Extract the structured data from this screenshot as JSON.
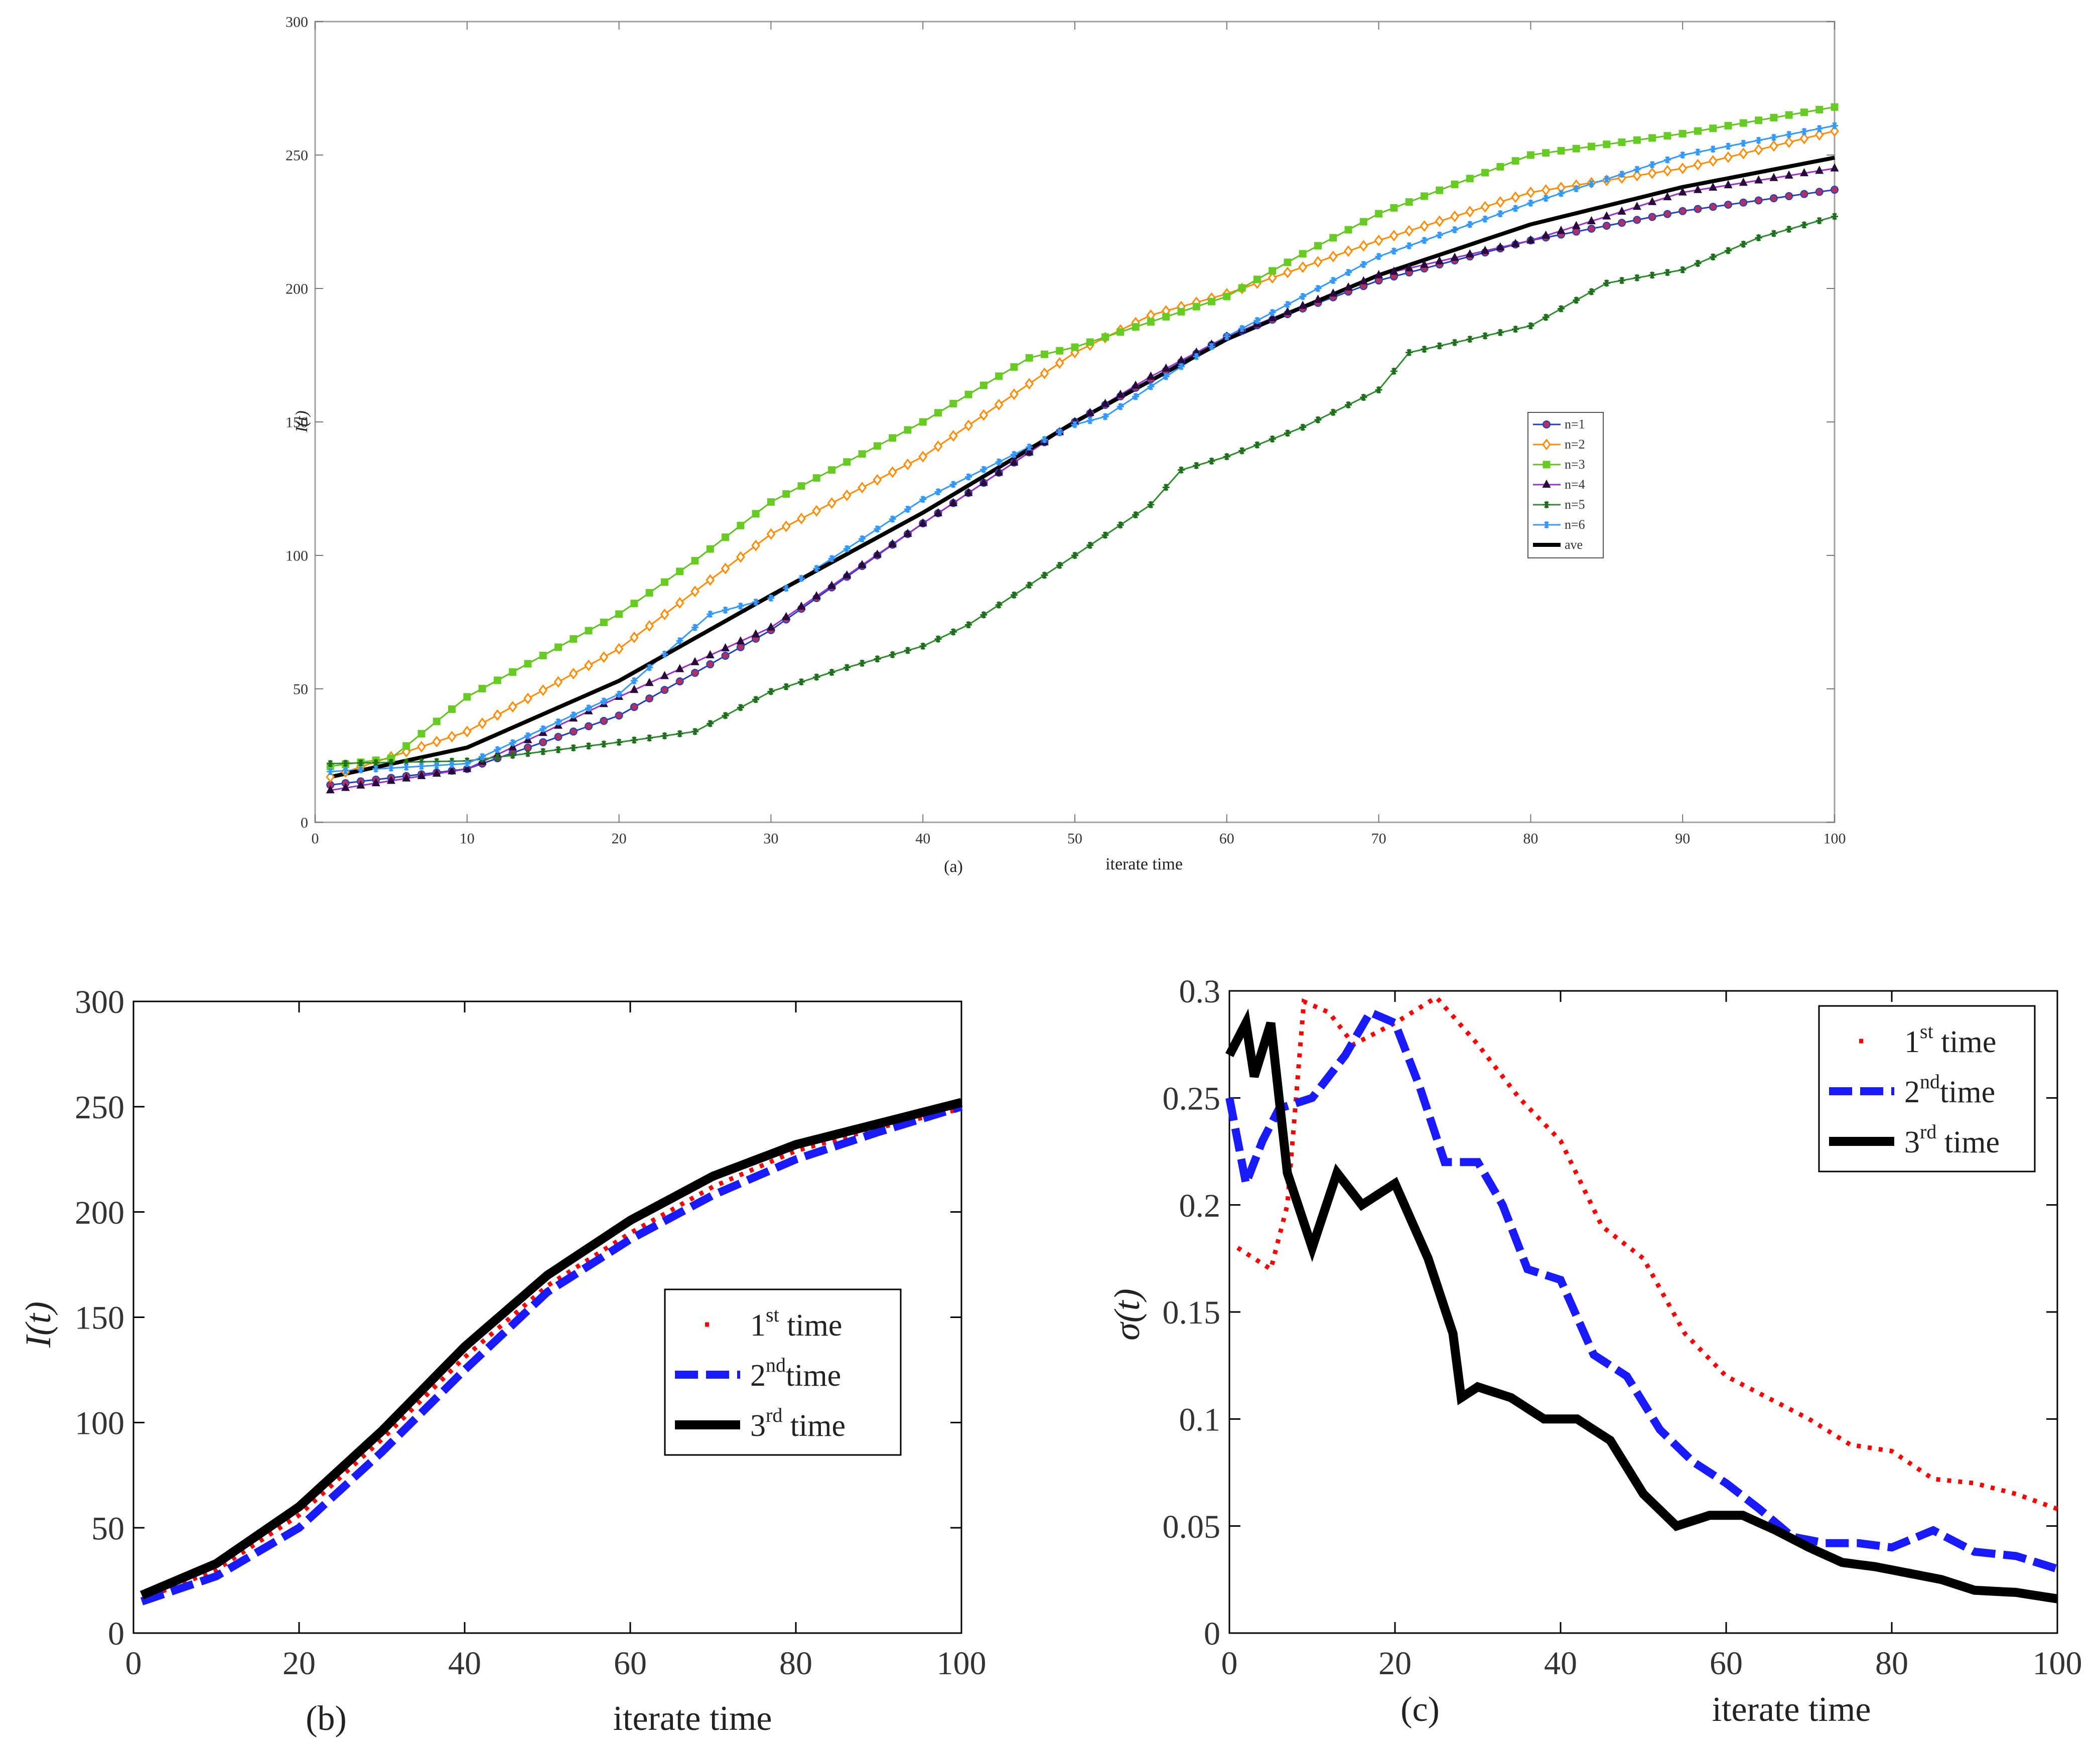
{
  "chart_data": [
    {
      "id": "a",
      "type": "line",
      "panel_label": "(a)",
      "xlabel": "iterate time",
      "ylabel": "I(t)",
      "xlim": [
        0,
        100
      ],
      "ylim": [
        0,
        300
      ],
      "xticks": [
        0,
        10,
        20,
        30,
        40,
        50,
        60,
        70,
        80,
        90,
        100
      ],
      "yticks": [
        0,
        50,
        100,
        150,
        200,
        250,
        300
      ],
      "legend_position": "middle-right",
      "series": [
        {
          "name": "n=1",
          "color": "#1f3fbf",
          "marker": "circle",
          "marker_fill": "#b03060",
          "points": [
            [
              1,
              14
            ],
            [
              10,
              20
            ],
            [
              20,
              40
            ],
            [
              30,
              72
            ],
            [
              40,
              112
            ],
            [
              50,
              150
            ],
            [
              60,
              182
            ],
            [
              70,
              203
            ],
            [
              80,
              218
            ],
            [
              90,
              229
            ],
            [
              100,
              237
            ]
          ]
        },
        {
          "name": "n=2",
          "color": "#ff8c00",
          "marker": "diamond",
          "marker_fill": "#ffffff",
          "points": [
            [
              1,
              17
            ],
            [
              10,
              34
            ],
            [
              20,
              65
            ],
            [
              30,
              108
            ],
            [
              40,
              137
            ],
            [
              50,
              176
            ],
            [
              55,
              190
            ],
            [
              60,
              198
            ],
            [
              70,
              218
            ],
            [
              80,
              236
            ],
            [
              90,
              245
            ],
            [
              100,
              259
            ]
          ]
        },
        {
          "name": "n=3",
          "color": "#60c020",
          "marker": "square",
          "marker_fill": "#66cc22",
          "points": [
            [
              1,
              21
            ],
            [
              5,
              24
            ],
            [
              10,
              47
            ],
            [
              20,
              78
            ],
            [
              25,
              98
            ],
            [
              30,
              120
            ],
            [
              40,
              150
            ],
            [
              47,
              174
            ],
            [
              50,
              178
            ],
            [
              60,
              197
            ],
            [
              65,
              213
            ],
            [
              70,
              228
            ],
            [
              80,
              250
            ],
            [
              90,
              258
            ],
            [
              100,
              268
            ]
          ]
        },
        {
          "name": "n=4",
          "color": "#9b30c8",
          "marker": "triangle",
          "marker_fill": "#2a0a3a",
          "points": [
            [
              1,
              12
            ],
            [
              10,
              20
            ],
            [
              20,
              47
            ],
            [
              30,
              73
            ],
            [
              40,
              112
            ],
            [
              50,
              150
            ],
            [
              55,
              167
            ],
            [
              60,
              182
            ],
            [
              70,
              205
            ],
            [
              80,
              218
            ],
            [
              90,
              236
            ],
            [
              100,
              245
            ]
          ]
        },
        {
          "name": "n=5",
          "color": "#2e8b2e",
          "marker": "star",
          "marker_fill": "#1e6e1e",
          "points": [
            [
              1,
              22
            ],
            [
              10,
              23
            ],
            [
              20,
              30
            ],
            [
              25,
              34
            ],
            [
              30,
              49
            ],
            [
              35,
              58
            ],
            [
              40,
              66
            ],
            [
              43,
              74
            ],
            [
              50,
              100
            ],
            [
              55,
              119
            ],
            [
              57,
              132
            ],
            [
              60,
              137
            ],
            [
              65,
              148
            ],
            [
              70,
              162
            ],
            [
              72,
              176
            ],
            [
              80,
              186
            ],
            [
              85,
              202
            ],
            [
              90,
              207
            ],
            [
              95,
              219
            ],
            [
              100,
              227
            ]
          ]
        },
        {
          "name": "n=6",
          "color": "#3399ff",
          "marker": "asterisk",
          "marker_fill": "#3399ff",
          "points": [
            [
              1,
              19
            ],
            [
              10,
              22
            ],
            [
              20,
              48
            ],
            [
              26,
              78
            ],
            [
              30,
              84
            ],
            [
              40,
              121
            ],
            [
              50,
              149
            ],
            [
              52,
              152
            ],
            [
              60,
              182
            ],
            [
              70,
              212
            ],
            [
              80,
              232
            ],
            [
              90,
              250
            ],
            [
              100,
              261
            ]
          ]
        },
        {
          "name": "ave",
          "color": "#000000",
          "marker": "none",
          "marker_fill": "none",
          "points": [
            [
              1,
              17
            ],
            [
              10,
              28
            ],
            [
              20,
              53
            ],
            [
              30,
              85
            ],
            [
              40,
              116
            ],
            [
              50,
              150
            ],
            [
              60,
              181
            ],
            [
              70,
              205
            ],
            [
              80,
              224
            ],
            [
              90,
              238
            ],
            [
              100,
              249
            ]
          ]
        }
      ]
    },
    {
      "id": "b",
      "type": "line",
      "panel_label": "(b)",
      "xlabel": "iterate time",
      "ylabel": "I(t)",
      "xlim": [
        0,
        100
      ],
      "ylim": [
        0,
        300
      ],
      "xticks": [
        0,
        20,
        40,
        60,
        80,
        100
      ],
      "yticks": [
        0,
        50,
        100,
        150,
        200,
        250,
        300
      ],
      "legend_position": "middle-right",
      "series": [
        {
          "name": "1",
          "sup": "st",
          "suffix": " time",
          "color": "#ff0000",
          "style": "dotted",
          "points": [
            [
              1,
              16
            ],
            [
              10,
              30
            ],
            [
              20,
              56
            ],
            [
              30,
              92
            ],
            [
              40,
              131
            ],
            [
              50,
              165
            ],
            [
              60,
              190
            ],
            [
              70,
              212
            ],
            [
              80,
              229
            ],
            [
              90,
              240
            ],
            [
              100,
              249
            ]
          ]
        },
        {
          "name": "2",
          "sup": "nd",
          "suffix": "time",
          "color": "#1a1aff",
          "style": "dashed",
          "points": [
            [
              1,
              15
            ],
            [
              10,
              27
            ],
            [
              20,
              50
            ],
            [
              30,
              86
            ],
            [
              40,
              125
            ],
            [
              50,
              162
            ],
            [
              60,
              187
            ],
            [
              70,
              208
            ],
            [
              80,
              225
            ],
            [
              90,
              238
            ],
            [
              100,
              250
            ]
          ]
        },
        {
          "name": "3",
          "sup": "rd",
          "suffix": " time",
          "color": "#000000",
          "style": "solid",
          "points": [
            [
              1,
              18
            ],
            [
              10,
              33
            ],
            [
              20,
              60
            ],
            [
              30,
              96
            ],
            [
              40,
              136
            ],
            [
              50,
              170
            ],
            [
              60,
              196
            ],
            [
              70,
              217
            ],
            [
              80,
              232
            ],
            [
              90,
              242
            ],
            [
              100,
              252
            ]
          ]
        }
      ]
    },
    {
      "id": "c",
      "type": "line",
      "panel_label": "(c)",
      "xlabel": "iterate time",
      "ylabel": "σ(t)",
      "xlim": [
        0,
        100
      ],
      "ylim": [
        0,
        0.3
      ],
      "xticks": [
        0,
        20,
        40,
        60,
        80,
        100
      ],
      "yticks": [
        0,
        0.05,
        0.1,
        0.15,
        0.2,
        0.25,
        0.3
      ],
      "legend_position": "top-right",
      "series": [
        {
          "name": "1",
          "sup": "st",
          "suffix": " time",
          "color": "#ff0000",
          "style": "dotted",
          "points": [
            [
              1,
              0.18
            ],
            [
              3,
              0.175
            ],
            [
              5,
              0.17
            ],
            [
              7,
              0.2
            ],
            [
              9,
              0.295
            ],
            [
              12,
              0.29
            ],
            [
              15,
              0.275
            ],
            [
              20,
              0.285
            ],
            [
              25,
              0.297
            ],
            [
              30,
              0.275
            ],
            [
              35,
              0.25
            ],
            [
              40,
              0.23
            ],
            [
              45,
              0.19
            ],
            [
              50,
              0.175
            ],
            [
              55,
              0.14
            ],
            [
              60,
              0.12
            ],
            [
              65,
              0.11
            ],
            [
              70,
              0.1
            ],
            [
              75,
              0.088
            ],
            [
              80,
              0.085
            ],
            [
              85,
              0.072
            ],
            [
              90,
              0.07
            ],
            [
              95,
              0.065
            ],
            [
              100,
              0.058
            ]
          ]
        },
        {
          "name": "2",
          "sup": "nd",
          "suffix": "time",
          "color": "#1a1aff",
          "style": "dashed",
          "points": [
            [
              0,
              0.25
            ],
            [
              2,
              0.21
            ],
            [
              4,
              0.23
            ],
            [
              6,
              0.245
            ],
            [
              10,
              0.25
            ],
            [
              14,
              0.27
            ],
            [
              17,
              0.29
            ],
            [
              20,
              0.285
            ],
            [
              23,
              0.255
            ],
            [
              26,
              0.22
            ],
            [
              30,
              0.22
            ],
            [
              33,
              0.2
            ],
            [
              36,
              0.17
            ],
            [
              40,
              0.165
            ],
            [
              44,
              0.13
            ],
            [
              48,
              0.12
            ],
            [
              52,
              0.095
            ],
            [
              56,
              0.08
            ],
            [
              60,
              0.07
            ],
            [
              64,
              0.058
            ],
            [
              68,
              0.045
            ],
            [
              72,
              0.042
            ],
            [
              76,
              0.042
            ],
            [
              80,
              0.04
            ],
            [
              85,
              0.048
            ],
            [
              90,
              0.038
            ],
            [
              95,
              0.036
            ],
            [
              100,
              0.03
            ]
          ]
        },
        {
          "name": "3",
          "sup": "rd",
          "suffix": " time",
          "color": "#000000",
          "style": "solid",
          "points": [
            [
              0,
              0.27
            ],
            [
              2,
              0.285
            ],
            [
              3,
              0.26
            ],
            [
              5,
              0.285
            ],
            [
              7,
              0.215
            ],
            [
              10,
              0.18
            ],
            [
              13,
              0.215
            ],
            [
              16,
              0.2
            ],
            [
              20,
              0.21
            ],
            [
              24,
              0.175
            ],
            [
              27,
              0.14
            ],
            [
              28,
              0.11
            ],
            [
              30,
              0.115
            ],
            [
              34,
              0.11
            ],
            [
              38,
              0.1
            ],
            [
              42,
              0.1
            ],
            [
              46,
              0.09
            ],
            [
              50,
              0.065
            ],
            [
              54,
              0.05
            ],
            [
              58,
              0.055
            ],
            [
              62,
              0.055
            ],
            [
              66,
              0.048
            ],
            [
              70,
              0.04
            ],
            [
              74,
              0.033
            ],
            [
              78,
              0.031
            ],
            [
              82,
              0.028
            ],
            [
              86,
              0.025
            ],
            [
              90,
              0.02
            ],
            [
              95,
              0.019
            ],
            [
              100,
              0.016
            ]
          ]
        }
      ]
    }
  ]
}
